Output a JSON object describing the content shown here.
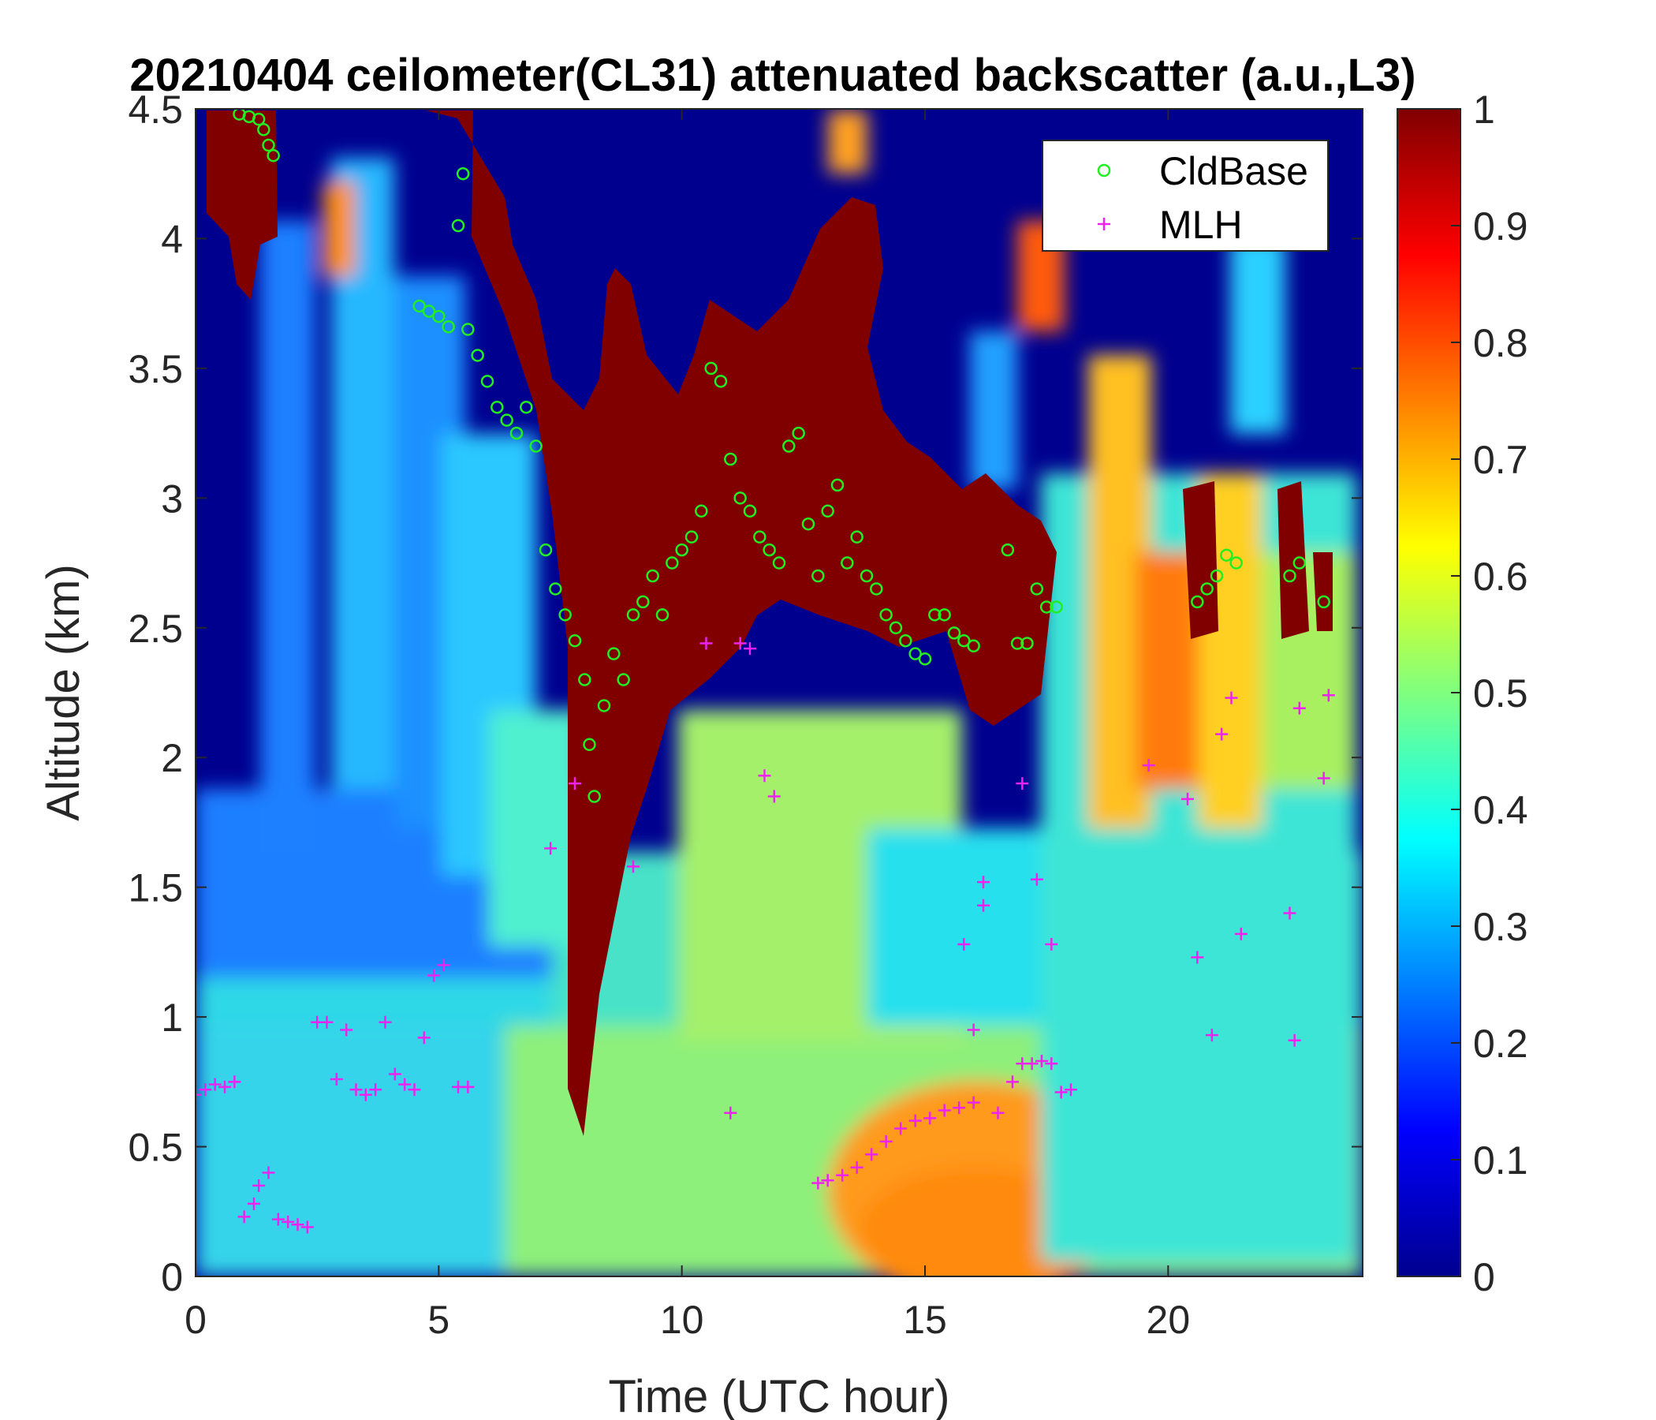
{
  "chart_data": {
    "type": "heatmap",
    "title": "20210404 ceilometer(CL31) attenuated backscatter (a.u.,L3)",
    "xlabel": "Time (UTC hour)",
    "ylabel": "Altitude (km)",
    "xlim": [
      0,
      24
    ],
    "ylim": [
      0,
      4.5
    ],
    "xticks": [
      "0",
      "5",
      "10",
      "15",
      "20"
    ],
    "yticks": [
      "0",
      "0.5",
      "1",
      "1.5",
      "2",
      "2.5",
      "3",
      "3.5",
      "4",
      "4.5"
    ],
    "colorbar": {
      "colormap": "jet",
      "range": [
        0,
        1
      ],
      "ticks": [
        "0",
        "0.1",
        "0.2",
        "0.3",
        "0.4",
        "0.5",
        "0.6",
        "0.7",
        "0.8",
        "0.9",
        "1"
      ]
    },
    "legend": {
      "position": "top-right",
      "entries": [
        {
          "label": "CldBase",
          "marker": "circle",
          "color": "#22ee22"
        },
        {
          "label": "MLH",
          "marker": "plus",
          "color": "#ee22ee"
        }
      ]
    },
    "series": [
      {
        "name": "CldBase",
        "points": [
          [
            0.9,
            4.48
          ],
          [
            1.1,
            4.47
          ],
          [
            1.3,
            4.46
          ],
          [
            1.4,
            4.42
          ],
          [
            1.5,
            4.36
          ],
          [
            1.6,
            4.32
          ],
          [
            4.6,
            3.74
          ],
          [
            4.8,
            3.72
          ],
          [
            5.0,
            3.7
          ],
          [
            5.2,
            3.66
          ],
          [
            5.4,
            4.05
          ],
          [
            5.5,
            4.25
          ],
          [
            5.6,
            3.65
          ],
          [
            5.8,
            3.55
          ],
          [
            6.0,
            3.45
          ],
          [
            6.2,
            3.35
          ],
          [
            6.4,
            3.3
          ],
          [
            6.6,
            3.25
          ],
          [
            6.8,
            3.35
          ],
          [
            7.0,
            3.2
          ],
          [
            7.2,
            2.8
          ],
          [
            7.4,
            2.65
          ],
          [
            7.6,
            2.55
          ],
          [
            7.8,
            2.45
          ],
          [
            8.0,
            2.3
          ],
          [
            8.1,
            2.05
          ],
          [
            8.2,
            1.85
          ],
          [
            8.4,
            2.2
          ],
          [
            8.6,
            2.4
          ],
          [
            8.8,
            2.3
          ],
          [
            9.0,
            2.55
          ],
          [
            9.2,
            2.6
          ],
          [
            9.4,
            2.7
          ],
          [
            9.6,
            2.55
          ],
          [
            9.8,
            2.75
          ],
          [
            10.0,
            2.8
          ],
          [
            10.2,
            2.85
          ],
          [
            10.4,
            2.95
          ],
          [
            10.6,
            3.5
          ],
          [
            10.8,
            3.45
          ],
          [
            11.0,
            3.15
          ],
          [
            11.2,
            3.0
          ],
          [
            11.4,
            2.95
          ],
          [
            11.6,
            2.85
          ],
          [
            11.8,
            2.8
          ],
          [
            12.0,
            2.75
          ],
          [
            12.2,
            3.2
          ],
          [
            12.4,
            3.25
          ],
          [
            12.6,
            2.9
          ],
          [
            12.8,
            2.7
          ],
          [
            13.0,
            2.95
          ],
          [
            13.2,
            3.05
          ],
          [
            13.4,
            2.75
          ],
          [
            13.6,
            2.85
          ],
          [
            13.8,
            2.7
          ],
          [
            14.0,
            2.65
          ],
          [
            14.2,
            2.55
          ],
          [
            14.4,
            2.5
          ],
          [
            14.6,
            2.45
          ],
          [
            14.8,
            2.4
          ],
          [
            15.0,
            2.38
          ],
          [
            15.2,
            2.55
          ],
          [
            15.4,
            2.55
          ],
          [
            15.6,
            2.48
          ],
          [
            15.8,
            2.45
          ],
          [
            16.0,
            2.43
          ],
          [
            16.7,
            2.8
          ],
          [
            16.9,
            2.44
          ],
          [
            17.1,
            2.44
          ],
          [
            17.3,
            2.65
          ],
          [
            17.5,
            2.58
          ],
          [
            17.7,
            2.58
          ],
          [
            20.6,
            2.6
          ],
          [
            20.8,
            2.65
          ],
          [
            21.0,
            2.7
          ],
          [
            21.2,
            2.78
          ],
          [
            21.4,
            2.75
          ],
          [
            22.5,
            2.7
          ],
          [
            22.7,
            2.75
          ],
          [
            23.2,
            2.6
          ]
        ]
      },
      {
        "name": "MLH",
        "points": [
          [
            0.0,
            0.7
          ],
          [
            0.2,
            0.72
          ],
          [
            0.4,
            0.74
          ],
          [
            0.6,
            0.73
          ],
          [
            0.8,
            0.75
          ],
          [
            1.0,
            0.23
          ],
          [
            1.2,
            0.28
          ],
          [
            1.3,
            0.35
          ],
          [
            1.5,
            0.4
          ],
          [
            1.7,
            0.22
          ],
          [
            1.9,
            0.21
          ],
          [
            2.1,
            0.2
          ],
          [
            2.3,
            0.19
          ],
          [
            2.5,
            0.98
          ],
          [
            2.7,
            0.98
          ],
          [
            2.9,
            0.76
          ],
          [
            3.1,
            0.95
          ],
          [
            3.3,
            0.72
          ],
          [
            3.5,
            0.7
          ],
          [
            3.7,
            0.72
          ],
          [
            3.9,
            0.98
          ],
          [
            4.1,
            0.78
          ],
          [
            4.3,
            0.74
          ],
          [
            4.5,
            0.72
          ],
          [
            4.7,
            0.92
          ],
          [
            4.9,
            1.16
          ],
          [
            5.1,
            1.2
          ],
          [
            5.4,
            0.73
          ],
          [
            5.6,
            0.73
          ],
          [
            7.3,
            1.65
          ],
          [
            7.8,
            1.9
          ],
          [
            9.0,
            1.58
          ],
          [
            10.5,
            2.44
          ],
          [
            11.0,
            0.63
          ],
          [
            11.2,
            2.44
          ],
          [
            11.4,
            2.42
          ],
          [
            11.7,
            1.93
          ],
          [
            11.9,
            1.85
          ],
          [
            12.8,
            0.36
          ],
          [
            13.0,
            0.37
          ],
          [
            13.3,
            0.39
          ],
          [
            13.6,
            0.42
          ],
          [
            13.9,
            0.47
          ],
          [
            14.2,
            0.52
          ],
          [
            14.5,
            0.57
          ],
          [
            14.8,
            0.6
          ],
          [
            15.1,
            0.61
          ],
          [
            15.4,
            0.64
          ],
          [
            15.7,
            0.65
          ],
          [
            16.0,
            0.67
          ],
          [
            16.2,
            1.52
          ],
          [
            16.5,
            0.63
          ],
          [
            16.8,
            0.75
          ],
          [
            17.0,
            0.82
          ],
          [
            17.2,
            0.82
          ],
          [
            17.4,
            0.83
          ],
          [
            17.6,
            0.82
          ],
          [
            17.8,
            0.71
          ],
          [
            17.0,
            1.9
          ],
          [
            17.3,
            1.53
          ],
          [
            17.6,
            1.28
          ],
          [
            16.0,
            0.95
          ],
          [
            15.8,
            1.28
          ],
          [
            16.2,
            1.43
          ],
          [
            18.0,
            0.72
          ],
          [
            19.6,
            1.97
          ],
          [
            20.4,
            1.84
          ],
          [
            20.6,
            1.23
          ],
          [
            20.9,
            0.93
          ],
          [
            21.1,
            2.09
          ],
          [
            21.3,
            2.23
          ],
          [
            21.5,
            1.32
          ],
          [
            22.5,
            1.4
          ],
          [
            22.6,
            0.91
          ],
          [
            22.7,
            2.19
          ],
          [
            23.2,
            1.92
          ],
          [
            23.3,
            2.24
          ]
        ]
      }
    ]
  }
}
